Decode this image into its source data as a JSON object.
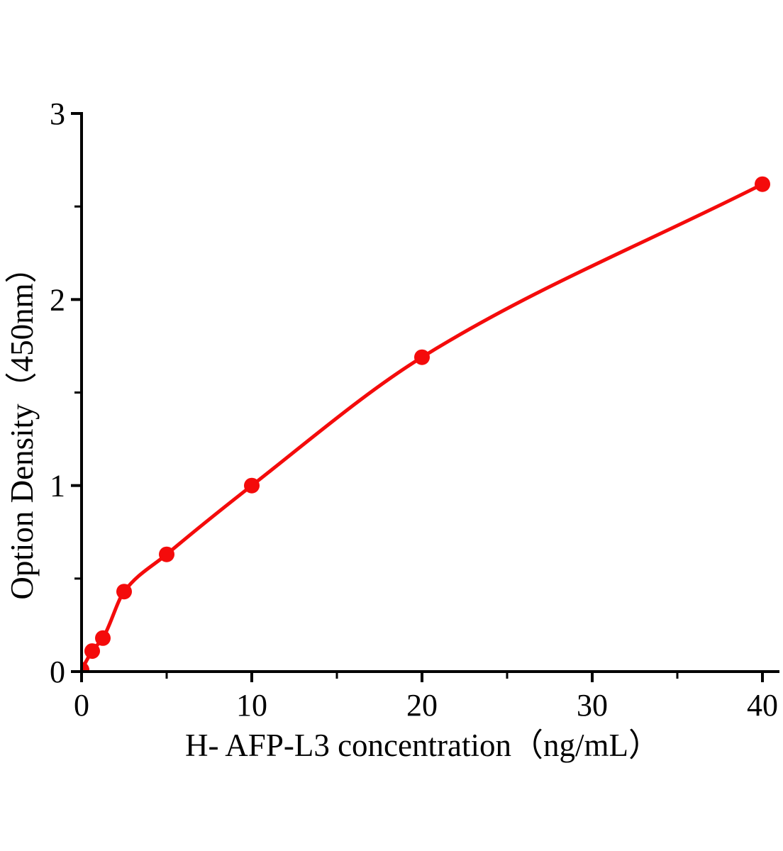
{
  "figure": {
    "background": "#ffffff"
  },
  "chart_data": {
    "type": "line",
    "title": "",
    "xlabel": "H- AFP-L3 concentration（ng/mL）",
    "ylabel": "Option Density（450nm）",
    "xlim": [
      0,
      41
    ],
    "ylim": [
      0,
      3
    ],
    "x_major_ticks": [
      0,
      10,
      20,
      30,
      40
    ],
    "x_minor_ticks": [
      5,
      15,
      25,
      35
    ],
    "y_major_ticks": [
      0,
      1,
      2,
      3
    ],
    "y_minor_ticks": [
      0.5,
      1.5,
      2.5
    ],
    "grid": false,
    "legend": "none",
    "series": [
      {
        "color": "#f40b0b",
        "marker": "circle",
        "x": [
          0,
          0.625,
          1.25,
          2.5,
          5,
          10,
          20,
          40
        ],
        "y": [
          0.01,
          0.11,
          0.18,
          0.43,
          0.63,
          1.0,
          1.69,
          2.62
        ]
      }
    ],
    "colors": {
      "axis": "#000000",
      "background": "#ffffff",
      "curve": "#f40b0b"
    }
  }
}
